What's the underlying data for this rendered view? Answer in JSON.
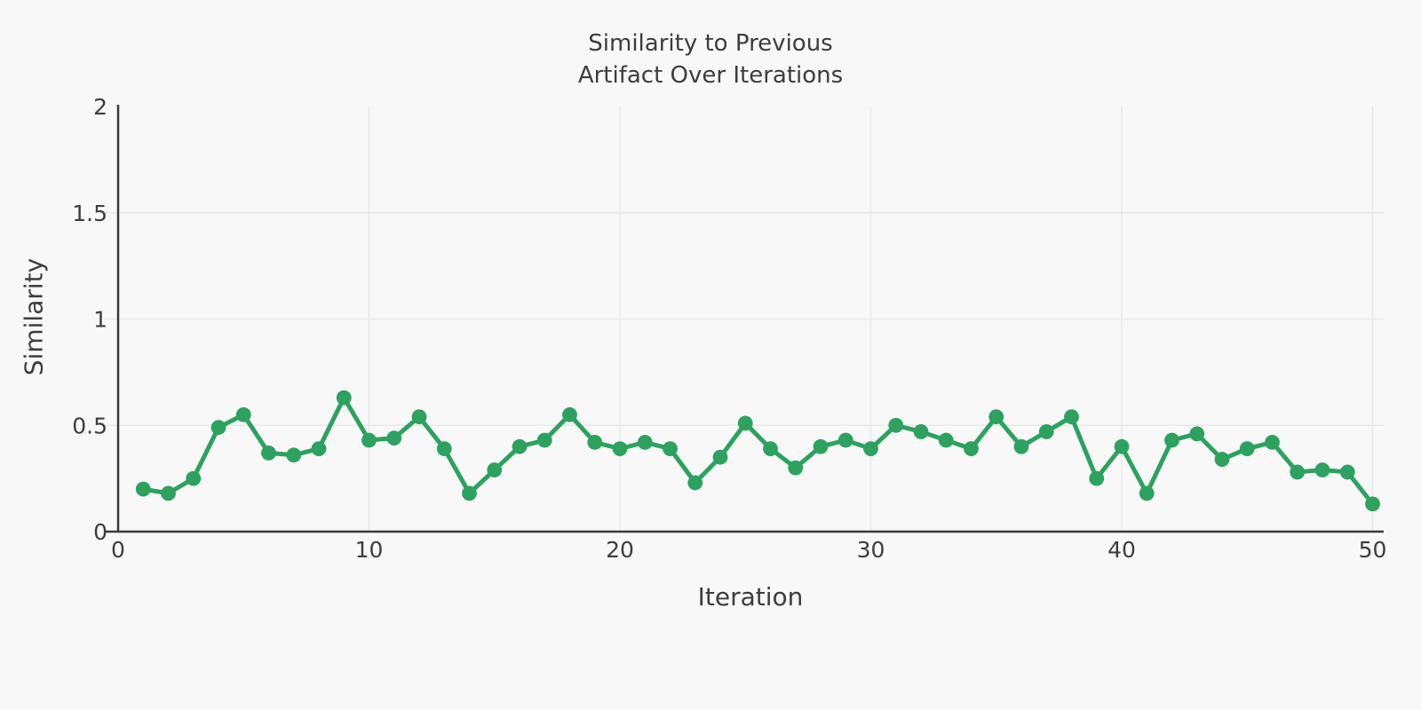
{
  "chart_data": {
    "type": "line",
    "title": "Similarity to Previous Artifact Over Iterations",
    "title_lines": [
      "Similarity to Previous",
      "Artifact Over Iterations"
    ],
    "xlabel": "Iteration",
    "ylabel": "Similarity",
    "xlim": [
      0,
      50
    ],
    "ylim": [
      0,
      2
    ],
    "x_ticks": [
      0,
      10,
      20,
      30,
      40,
      50
    ],
    "y_ticks": [
      0,
      0.5,
      1,
      1.5,
      2
    ],
    "grid": true,
    "legend": false,
    "series": [
      {
        "name": "Similarity to Previous Artifact",
        "marker": "circle",
        "color": "#2ca25e",
        "x": [
          1,
          2,
          3,
          4,
          5,
          6,
          7,
          8,
          9,
          10,
          11,
          12,
          13,
          14,
          15,
          16,
          17,
          18,
          19,
          20,
          21,
          22,
          23,
          24,
          25,
          26,
          27,
          28,
          29,
          30,
          31,
          32,
          33,
          34,
          35,
          36,
          37,
          38,
          39,
          40,
          41,
          42,
          43,
          44,
          45,
          46,
          47,
          48,
          49,
          50
        ],
        "y": [
          0.2,
          0.18,
          0.25,
          0.49,
          0.55,
          0.37,
          0.36,
          0.39,
          0.63,
          0.43,
          0.44,
          0.54,
          0.39,
          0.18,
          0.29,
          0.4,
          0.43,
          0.55,
          0.42,
          0.39,
          0.42,
          0.39,
          0.23,
          0.35,
          0.51,
          0.39,
          0.3,
          0.4,
          0.43,
          0.39,
          0.5,
          0.47,
          0.43,
          0.39,
          0.54,
          0.4,
          0.47,
          0.54,
          0.25,
          0.4,
          0.18,
          0.43,
          0.46,
          0.34,
          0.39,
          0.42,
          0.28,
          0.29,
          0.28,
          0.13
        ]
      }
    ],
    "colors": {
      "line": "#2ca25e",
      "background": "#f8f8f8",
      "grid": "#e8e9e9",
      "axis": "#3a3a3a",
      "text": "#3d3d3d"
    }
  }
}
